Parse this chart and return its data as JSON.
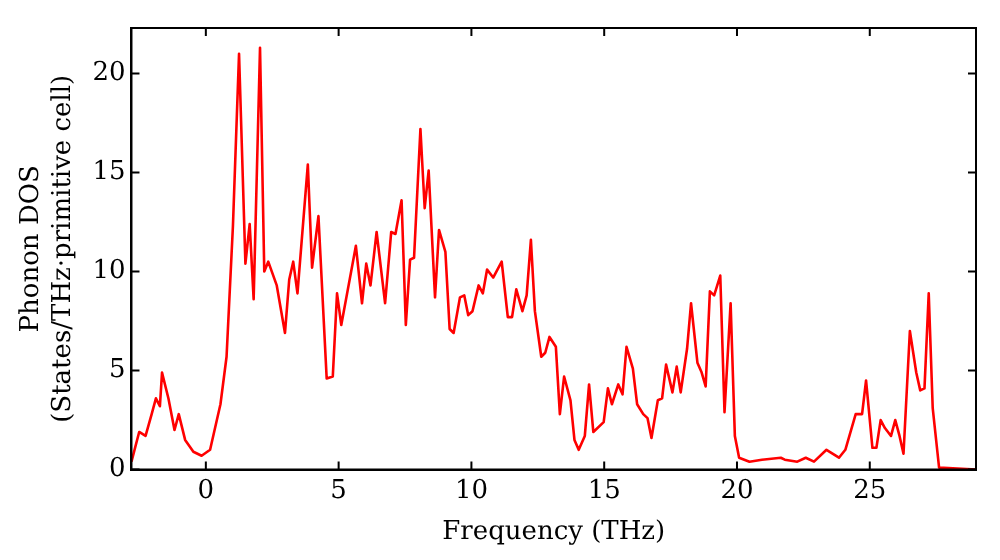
{
  "chart_data": {
    "type": "line",
    "xlabel": "Frequency (THz)",
    "ylabel": "Phonon DOS\n(States/THz·primitive cell)",
    "xlim": [
      -2.8,
      29
    ],
    "ylim": [
      0,
      22.3
    ],
    "xticks": [
      0,
      5,
      10,
      15,
      20,
      25
    ],
    "yticks": [
      0,
      5,
      10,
      15,
      20
    ],
    "grid": false,
    "legend": false,
    "marker": "none",
    "line_style": "solid",
    "series": [
      {
        "color": "#ff0000",
        "x": [
          -2.8,
          -2.51,
          -2.27,
          -2.04,
          -1.88,
          -1.73,
          -1.65,
          -1.41,
          -1.18,
          -1.02,
          -0.78,
          -0.47,
          -0.16,
          0.16,
          0.55,
          0.78,
          1.02,
          1.25,
          1.49,
          1.65,
          1.8,
          2.04,
          2.2,
          2.35,
          2.67,
          2.98,
          3.14,
          3.29,
          3.45,
          3.84,
          4.0,
          4.24,
          4.55,
          4.78,
          4.94,
          5.1,
          5.65,
          5.88,
          6.04,
          6.2,
          6.43,
          6.75,
          6.98,
          7.14,
          7.37,
          7.53,
          7.69,
          7.84,
          8.08,
          8.24,
          8.39,
          8.63,
          8.78,
          9.02,
          9.18,
          9.33,
          9.57,
          9.73,
          9.88,
          10.04,
          10.27,
          10.43,
          10.59,
          10.82,
          11.14,
          11.37,
          11.53,
          11.69,
          11.92,
          12.08,
          12.24,
          12.39,
          12.63,
          12.78,
          12.94,
          13.18,
          13.33,
          13.49,
          13.73,
          13.88,
          14.04,
          14.27,
          14.43,
          14.59,
          14.98,
          15.14,
          15.29,
          15.53,
          15.69,
          15.84,
          16.08,
          16.24,
          16.47,
          16.63,
          16.78,
          17.02,
          17.18,
          17.33,
          17.57,
          17.73,
          17.88,
          18.12,
          18.27,
          18.51,
          18.67,
          18.82,
          18.98,
          19.14,
          19.37,
          19.53,
          19.76,
          19.92,
          20.08,
          20.47,
          20.94,
          21.65,
          21.8,
          22.27,
          22.59,
          22.9,
          23.37,
          23.84,
          24.08,
          24.47,
          24.71,
          24.86,
          25.1,
          25.25,
          25.41,
          25.57,
          25.8,
          25.96,
          26.12,
          26.27,
          26.51,
          26.75,
          26.9,
          27.06,
          27.22,
          27.37,
          27.61,
          29.0
        ],
        "values": [
          0.4,
          1.9,
          1.7,
          2.8,
          3.6,
          3.2,
          4.9,
          3.6,
          2.0,
          2.8,
          1.5,
          0.9,
          0.7,
          1.0,
          3.3,
          5.7,
          12.3,
          21.0,
          10.4,
          12.4,
          8.6,
          21.3,
          10.0,
          10.5,
          9.3,
          6.9,
          9.6,
          10.5,
          8.9,
          15.4,
          10.2,
          12.8,
          4.6,
          4.7,
          8.9,
          7.3,
          11.3,
          8.4,
          10.4,
          9.3,
          12.0,
          8.4,
          12.0,
          11.9,
          13.6,
          7.3,
          10.6,
          10.7,
          17.2,
          13.2,
          15.1,
          8.7,
          12.1,
          11.0,
          7.1,
          6.9,
          8.7,
          8.8,
          7.8,
          8.0,
          9.3,
          8.9,
          10.1,
          9.7,
          10.5,
          7.7,
          7.7,
          9.1,
          8.0,
          8.8,
          11.6,
          8.0,
          5.7,
          5.9,
          6.7,
          6.2,
          2.8,
          4.7,
          3.5,
          1.5,
          1.0,
          1.7,
          4.3,
          1.9,
          2.4,
          4.1,
          3.3,
          4.3,
          3.8,
          6.2,
          5.1,
          3.3,
          2.8,
          2.6,
          1.6,
          3.5,
          3.6,
          5.3,
          3.9,
          5.2,
          3.9,
          6.1,
          8.4,
          5.4,
          4.9,
          4.2,
          9.0,
          8.8,
          9.8,
          2.9,
          8.4,
          1.7,
          0.6,
          0.4,
          0.5,
          0.6,
          0.5,
          0.4,
          0.6,
          0.4,
          1.0,
          0.6,
          1.0,
          2.8,
          2.8,
          4.5,
          1.1,
          1.1,
          2.5,
          2.1,
          1.7,
          2.5,
          1.7,
          0.8,
          7.0,
          4.9,
          4.0,
          4.1,
          8.9,
          3.1,
          0.1,
          0.0
        ]
      }
    ]
  }
}
